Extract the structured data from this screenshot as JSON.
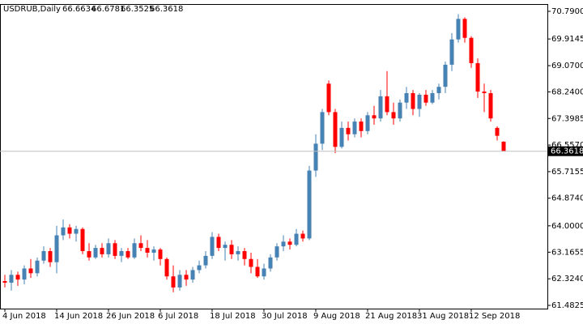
{
  "chart_data": {
    "type": "candlestick",
    "title": "USDRUB,Daily",
    "up_color": "#4682b4",
    "down_color": "#ff0000",
    "ylim": [
      61.38,
      71.02
    ],
    "yticks": [
      {
        "value": 70.79,
        "label": "70.7900"
      },
      69.9145,
      {
        "value": 69.07,
        "label": "69.0700"
      },
      {
        "value": 68.24,
        "label": "68.2400"
      },
      67.3985,
      {
        "value": 66.557,
        "label": "66.5570"
      },
      65.7155,
      {
        "value": 64.874,
        "label": "64.8740"
      },
      {
        "value": 64,
        "label": "64.0000"
      },
      63.1655,
      {
        "value": 62.324,
        "label": "62.3240"
      },
      61.4825
    ],
    "categories": [
      "4 Jun 2018",
      null,
      null,
      null,
      null,
      null,
      null,
      null,
      "14 Jun 2018",
      null,
      null,
      null,
      null,
      null,
      null,
      null,
      "26 Jun 2018",
      null,
      null,
      null,
      null,
      null,
      null,
      null,
      "6 Jul 2018",
      null,
      null,
      null,
      null,
      null,
      null,
      null,
      "18 Jul 2018",
      null,
      null,
      null,
      null,
      null,
      null,
      null,
      "30 Jul 2018",
      null,
      null,
      null,
      null,
      null,
      null,
      null,
      "9 Aug 2018",
      null,
      null,
      null,
      null,
      null,
      null,
      null,
      "21 Aug 2018",
      null,
      null,
      null,
      null,
      null,
      null,
      null,
      "31 Aug 2018",
      null,
      null,
      null,
      null,
      null,
      null,
      null,
      "12 Sep 2018",
      null,
      null,
      null,
      null,
      null
    ],
    "ohlc": [
      [
        62.25,
        62.45,
        62.05,
        62.2
      ],
      [
        62.2,
        62.6,
        61.95,
        62.45
      ],
      [
        62.45,
        62.55,
        62.1,
        62.3
      ],
      [
        62.3,
        62.75,
        62.15,
        62.65
      ],
      [
        62.65,
        62.95,
        62.35,
        62.5
      ],
      [
        62.5,
        63.0,
        62.4,
        62.9
      ],
      [
        62.9,
        63.35,
        62.8,
        63.2
      ],
      [
        63.2,
        63.3,
        62.7,
        62.85
      ],
      [
        62.85,
        64.0,
        62.5,
        63.7
      ],
      [
        63.7,
        64.2,
        63.55,
        63.95
      ],
      [
        63.95,
        64.05,
        63.6,
        63.75
      ],
      [
        63.75,
        64.0,
        63.5,
        63.9
      ],
      [
        63.9,
        63.95,
        63.1,
        63.2
      ],
      [
        63.2,
        63.45,
        62.9,
        63.0
      ],
      [
        63.0,
        63.4,
        62.95,
        63.3
      ],
      [
        63.3,
        63.45,
        63.0,
        63.1
      ],
      [
        63.1,
        63.6,
        63.0,
        63.45
      ],
      [
        63.45,
        63.55,
        62.95,
        63.05
      ],
      [
        63.05,
        63.3,
        62.85,
        63.2
      ],
      [
        63.2,
        63.3,
        62.95,
        63.0
      ],
      [
        63.0,
        63.6,
        62.95,
        63.45
      ],
      [
        63.45,
        63.7,
        63.2,
        63.3
      ],
      [
        63.3,
        63.55,
        63.0,
        63.15
      ],
      [
        63.15,
        63.35,
        62.9,
        63.25
      ],
      [
        63.25,
        63.3,
        62.75,
        62.95
      ],
      [
        62.95,
        63.0,
        62.3,
        62.4
      ],
      [
        62.4,
        62.75,
        61.9,
        62.05
      ],
      [
        62.05,
        62.6,
        61.95,
        62.45
      ],
      [
        62.45,
        62.6,
        62.1,
        62.3
      ],
      [
        62.3,
        62.7,
        62.2,
        62.6
      ],
      [
        62.6,
        62.9,
        62.5,
        62.75
      ],
      [
        62.75,
        63.2,
        62.65,
        63.05
      ],
      [
        63.05,
        63.8,
        62.95,
        63.65
      ],
      [
        63.65,
        63.75,
        63.2,
        63.3
      ],
      [
        63.3,
        63.5,
        62.9,
        63.4
      ],
      [
        63.4,
        63.55,
        62.95,
        63.1
      ],
      [
        63.1,
        63.35,
        62.9,
        63.2
      ],
      [
        63.2,
        63.3,
        62.75,
        62.95
      ],
      [
        62.95,
        63.15,
        62.5,
        62.7
      ],
      [
        62.7,
        62.95,
        62.35,
        62.4
      ],
      [
        62.4,
        62.8,
        62.3,
        62.65
      ],
      [
        62.65,
        63.1,
        62.55,
        63.0
      ],
      [
        63.0,
        63.45,
        62.9,
        63.35
      ],
      [
        63.35,
        63.7,
        63.2,
        63.5
      ],
      [
        63.5,
        63.6,
        63.25,
        63.4
      ],
      [
        63.4,
        63.9,
        63.35,
        63.75
      ],
      [
        63.75,
        63.85,
        63.5,
        63.6
      ],
      [
        63.6,
        65.9,
        63.55,
        65.75
      ],
      [
        65.75,
        66.9,
        65.55,
        66.6
      ],
      [
        66.6,
        67.7,
        66.4,
        67.6
      ],
      [
        68.5,
        68.6,
        67.5,
        67.6
      ],
      [
        67.6,
        67.7,
        66.3,
        66.5
      ],
      [
        66.5,
        67.3,
        66.45,
        67.1
      ],
      [
        67.1,
        67.3,
        66.7,
        66.9
      ],
      [
        66.9,
        67.4,
        66.8,
        67.3
      ],
      [
        67.3,
        67.4,
        66.8,
        67.0
      ],
      [
        67.0,
        67.6,
        66.9,
        67.5
      ],
      [
        67.5,
        67.8,
        67.2,
        67.4
      ],
      [
        67.4,
        68.3,
        67.3,
        68.1
      ],
      [
        68.1,
        68.9,
        67.5,
        67.6
      ],
      [
        67.6,
        67.9,
        67.2,
        67.4
      ],
      [
        67.4,
        68.0,
        67.3,
        67.9
      ],
      [
        67.9,
        68.4,
        67.7,
        68.2
      ],
      [
        68.2,
        68.3,
        67.5,
        67.7
      ],
      [
        67.7,
        68.2,
        67.45,
        68.15
      ],
      [
        68.15,
        68.3,
        67.8,
        67.9
      ],
      [
        67.9,
        68.3,
        67.85,
        68.2
      ],
      [
        68.2,
        68.5,
        68.0,
        68.4
      ],
      [
        68.4,
        69.2,
        68.2,
        69.1
      ],
      [
        69.1,
        70.1,
        68.9,
        69.9
      ],
      [
        69.9,
        70.7,
        69.8,
        70.55
      ],
      [
        70.55,
        70.6,
        69.8,
        69.95
      ],
      [
        69.95,
        70.0,
        69.0,
        69.15
      ],
      [
        69.15,
        69.3,
        68.05,
        68.25
      ],
      [
        68.25,
        68.5,
        67.6,
        68.2
      ],
      [
        68.2,
        68.3,
        67.3,
        67.4
      ],
      [
        67.1,
        67.15,
        66.7,
        66.85
      ],
      [
        66.6634,
        66.6781,
        66.3525,
        66.3618
      ]
    ]
  }
}
